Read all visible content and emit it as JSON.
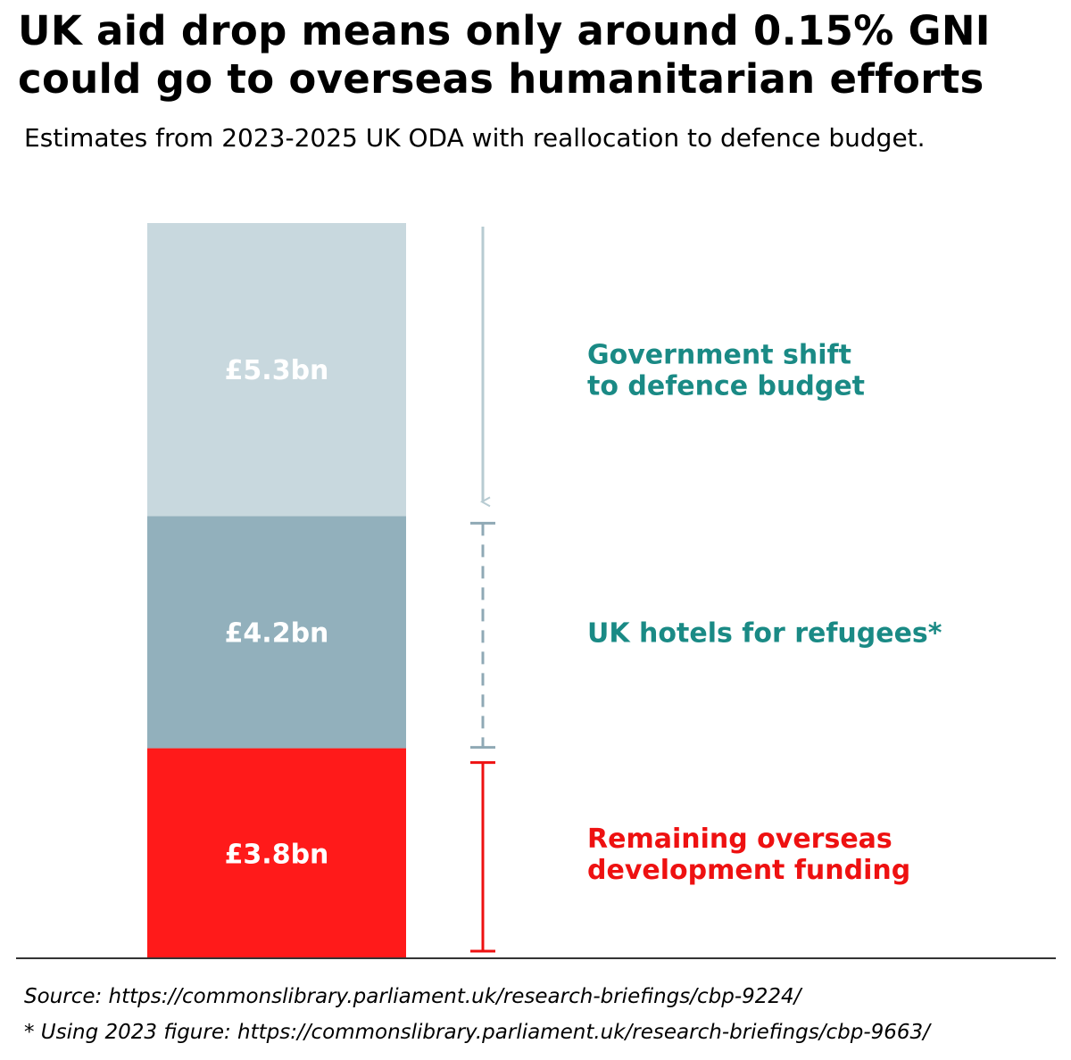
{
  "header": {
    "title_line1": "UK aid drop means only around 0.15% GNI",
    "title_line2": "could go to overseas humanitarian efforts",
    "subtitle": "Estimates from 2023-2025 UK ODA with reallocation to defence budget."
  },
  "chart_data": {
    "type": "bar",
    "stacked": true,
    "orientation": "vertical",
    "unit": "£bn",
    "ylim": [
      0,
      13.3
    ],
    "grid": false,
    "legend": "none",
    "segments": [
      {
        "value": 3.8,
        "label": "£3.8bn",
        "color": "#ff1a1a",
        "annotation_lines": [
          "Remaining overseas",
          "development funding"
        ],
        "annotation_color": "#ee1111",
        "marker": "solid-bracket"
      },
      {
        "value": 4.2,
        "label": "£4.2bn",
        "color": "#92b0bc",
        "annotation_lines": [
          "UK hotels for refugees*"
        ],
        "annotation_color": "#1a8a85",
        "marker": "dashed-bracket"
      },
      {
        "value": 5.3,
        "label": "£5.3bn",
        "color": "#c8d8de",
        "annotation_lines": [
          "Government shift",
          "to defence budget"
        ],
        "annotation_color": "#1a8a85",
        "marker": "down-arrow"
      }
    ]
  },
  "footer": {
    "source": "Source: https://commonslibrary.parliament.uk/research-briefings/cbp-9224/",
    "note": "* Using 2023 figure: https://commonslibrary.parliament.uk/research-briefings/cbp-9663/"
  },
  "colors": {
    "axis": "#333333",
    "teal": "#1a8a85",
    "red": "#ee1111",
    "arrow": "#b7cbd2",
    "dashed": "#8fa9b5"
  }
}
